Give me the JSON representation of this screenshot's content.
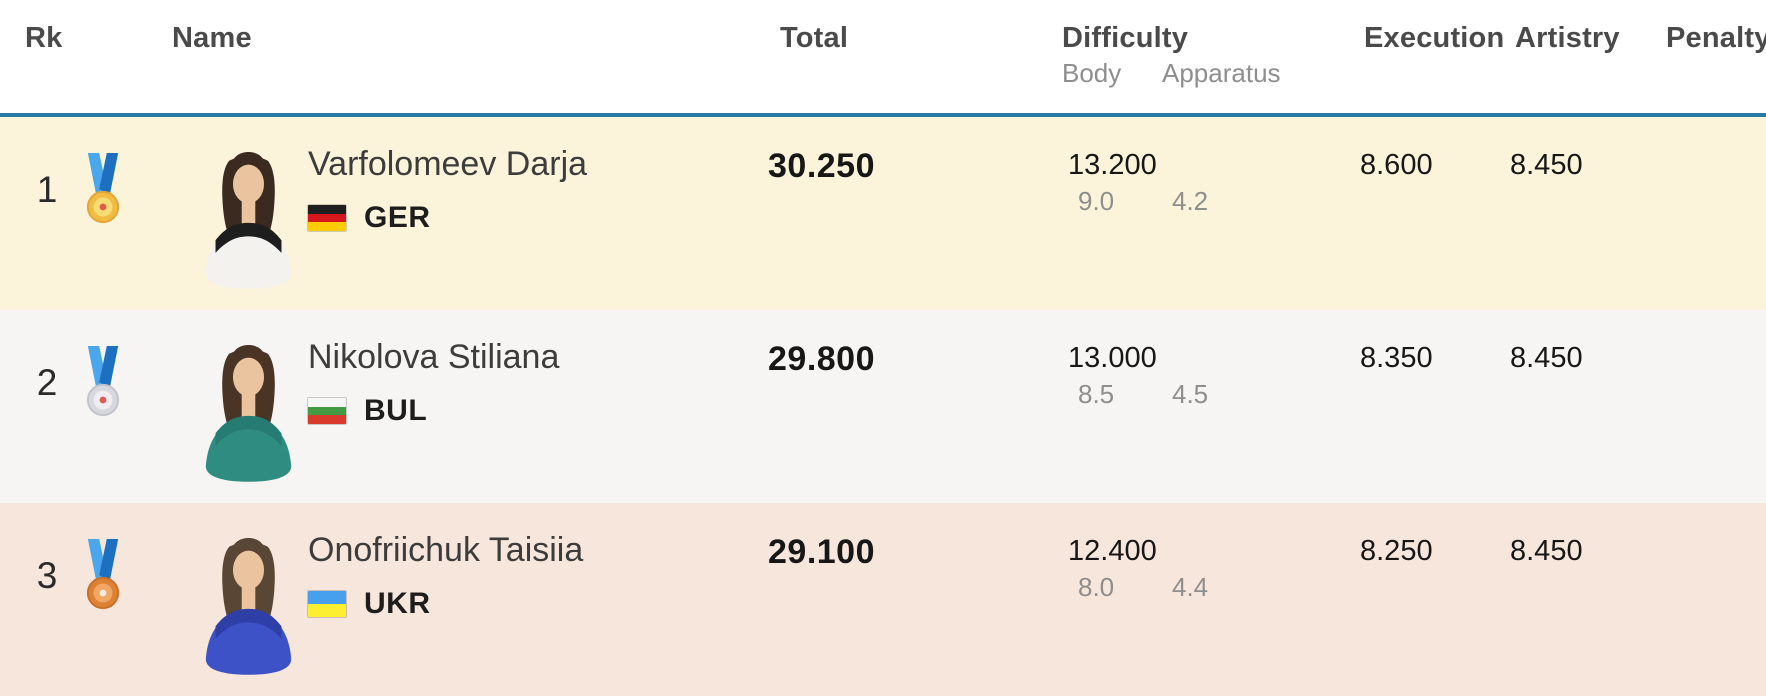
{
  "header": {
    "rk": "Rk",
    "name": "Name",
    "total": "Total",
    "difficulty": "Difficulty",
    "body": "Body",
    "apparatus": "Apparatus",
    "execution": "Execution",
    "artistry": "Artistry",
    "penalty": "Penalty"
  },
  "rows": [
    {
      "rank": "1",
      "medal": "gold",
      "name": "Varfolomeev Darja",
      "country": "GER",
      "total": "30.250",
      "difficulty": "13.200",
      "body": "9.0",
      "apparatus": "4.2",
      "execution": "8.600",
      "artistry": "8.450",
      "penalty": "",
      "bg": "#FBF4DB",
      "photo": {
        "hair": "#3A2A20",
        "skin": "#EAC49F",
        "top": "#F4F2EE",
        "accent": "#1E1E1E"
      }
    },
    {
      "rank": "2",
      "medal": "silver",
      "name": "Nikolova Stiliana",
      "country": "BUL",
      "total": "29.800",
      "difficulty": "13.000",
      "body": "8.5",
      "apparatus": "4.5",
      "execution": "8.350",
      "artistry": "8.450",
      "penalty": "",
      "bg": "#F6F5F3",
      "photo": {
        "hair": "#4A3426",
        "skin": "#EAC49F",
        "top": "#2F8C80",
        "accent": "#267C72"
      }
    },
    {
      "rank": "3",
      "medal": "bronze",
      "name": "Onofriichuk Taisiia",
      "country": "UKR",
      "total": "29.100",
      "difficulty": "12.400",
      "body": "8.0",
      "apparatus": "4.4",
      "execution": "8.250",
      "artistry": "8.450",
      "penalty": "",
      "bg": "#F7E6DC",
      "photo": {
        "hair": "#5A4634",
        "skin": "#EAC49F",
        "top": "#3E52C8",
        "accent": "#2F3FA8"
      }
    }
  ],
  "ribbon": {
    "left": "#4BA7EC",
    "right": "#1D6FC0"
  },
  "medals": {
    "gold": {
      "outer": "#F1BC42",
      "ring": "#E2A338",
      "inner": "#F7DC74",
      "emblem": "#E25A4D"
    },
    "silver": {
      "outer": "#D7D8DD",
      "ring": "#C1C2CA",
      "inner": "#EEEEF2",
      "emblem": "#E25A4D"
    },
    "bronze": {
      "outer": "#DD8134",
      "ring": "#C96F28",
      "inner": "#EFA763",
      "emblem": "#F7EBDD"
    }
  },
  "flags": {
    "GER": [
      "#1F1F1F",
      "#D6171C",
      "#FFCC00"
    ],
    "BUL": [
      "#F6F6F6",
      "#439A43",
      "#DA3A2B"
    ],
    "UKR": [
      "#47A0EE",
      "#FCEF31"
    ]
  },
  "colors": {
    "header_rule": "#2879A5",
    "row_backgrounds": [
      "#FBF4DB",
      "#F6F5F3",
      "#F7E6DC"
    ],
    "header_text": "#4A4A4A",
    "subheader_text": "#8E8E8E",
    "score_text": "#171717"
  }
}
